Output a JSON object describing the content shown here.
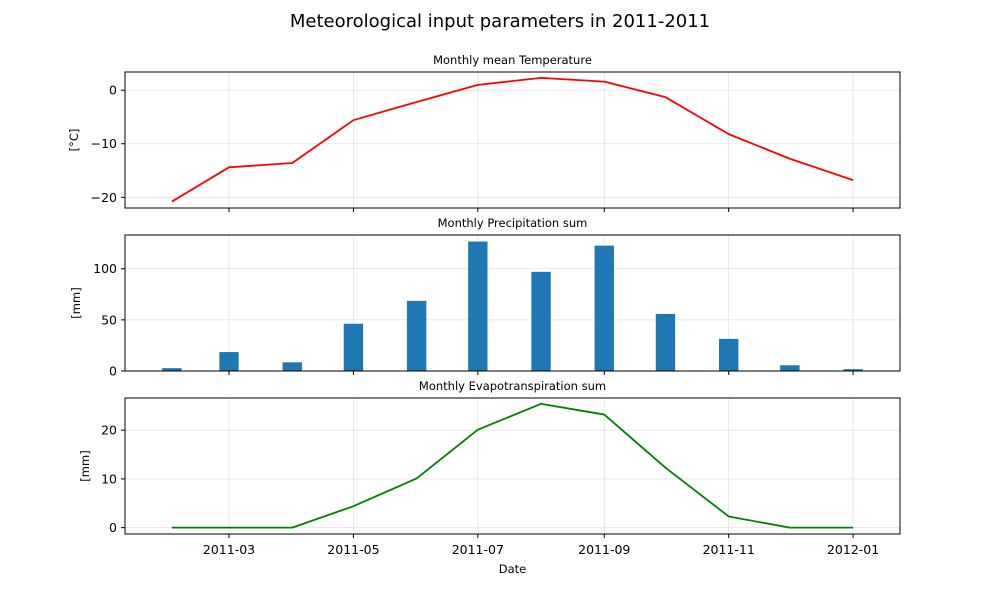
{
  "figure": {
    "title": "Meteorological input parameters in 2011-2011",
    "xlabel": "Date",
    "x_ticks": [
      "2011-03",
      "2011-05",
      "2011-07",
      "2011-09",
      "2011-11",
      "2012-01"
    ]
  },
  "chart_data": [
    {
      "type": "line",
      "title": "Monthly mean Temperature",
      "ylabel": "[°C]",
      "color": "#ff0000",
      "x": [
        "2011-02-01",
        "2011-03-01",
        "2011-04-01",
        "2011-05-01",
        "2011-06-01",
        "2011-07-01",
        "2011-08-01",
        "2011-09-01",
        "2011-10-01",
        "2011-11-01",
        "2011-12-01",
        "2012-01-01"
      ],
      "values": [
        -20.8,
        -14.4,
        -13.6,
        -5.6,
        -2.2,
        1.0,
        2.3,
        1.6,
        -1.3,
        -8.2,
        -12.8,
        -16.8
      ],
      "ylim": [
        -22,
        3.4
      ],
      "y_ticks": [
        -20,
        -10,
        0
      ],
      "y_tick_labels": [
        "−20",
        "−10",
        "0"
      ],
      "grid": true
    },
    {
      "type": "bar",
      "title": "Monthly Precipitation sum",
      "ylabel": "[mm]",
      "color": "#1f77b4",
      "x": [
        "2011-02-01",
        "2011-03-01",
        "2011-04-01",
        "2011-05-01",
        "2011-06-01",
        "2011-07-01",
        "2011-08-01",
        "2011-09-01",
        "2011-10-01",
        "2011-11-01",
        "2011-12-01",
        "2012-01-01"
      ],
      "values": [
        2.8,
        18.5,
        8.5,
        46.2,
        68.6,
        126.6,
        97.0,
        122.6,
        55.8,
        31.4,
        5.6,
        1.8
      ],
      "ylim": [
        0,
        133
      ],
      "y_ticks": [
        0,
        50,
        100
      ],
      "y_tick_labels": [
        "0",
        "50",
        "100"
      ],
      "grid": true
    },
    {
      "type": "line",
      "title": "Monthly Evapotranspiration sum",
      "ylabel": "[mm]",
      "color": "#008000",
      "x": [
        "2011-02-01",
        "2011-03-01",
        "2011-04-01",
        "2011-05-01",
        "2011-06-01",
        "2011-07-01",
        "2011-08-01",
        "2011-09-01",
        "2011-10-01",
        "2011-11-01",
        "2011-12-01",
        "2012-01-01"
      ],
      "values": [
        0,
        0,
        0,
        4.4,
        10.1,
        20.1,
        25.4,
        23.2,
        12.3,
        2.3,
        0,
        0
      ],
      "ylim": [
        -1.3,
        26.6
      ],
      "y_ticks": [
        0,
        10,
        20
      ],
      "y_tick_labels": [
        "0",
        "10",
        "20"
      ],
      "grid": true
    }
  ]
}
